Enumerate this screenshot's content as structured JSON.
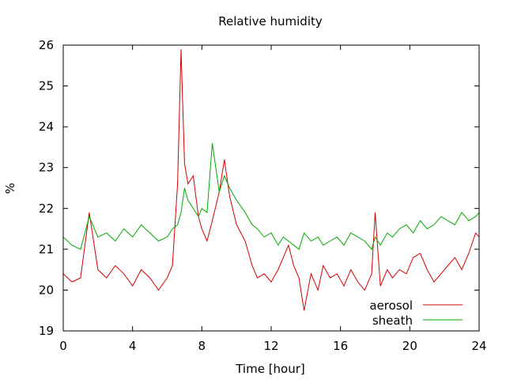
{
  "chart_data": {
    "type": "line",
    "title": "Relative humidity",
    "xlabel": "Time [hour]",
    "ylabel": "%",
    "xlim": [
      0,
      24
    ],
    "ylim": [
      19,
      26
    ],
    "xticks": [
      0,
      4,
      8,
      12,
      16,
      20,
      24
    ],
    "yticks": [
      19,
      20,
      21,
      22,
      23,
      24,
      25,
      26
    ],
    "grid": false,
    "legend_position": "bottom-right",
    "series": [
      {
        "name": "aerosol",
        "color": "#d40000",
        "x": [
          0.0,
          0.5,
          1.0,
          1.5,
          2.0,
          2.5,
          3.0,
          3.5,
          4.0,
          4.5,
          5.0,
          5.5,
          6.0,
          6.3,
          6.6,
          6.8,
          7.0,
          7.2,
          7.5,
          7.8,
          8.0,
          8.3,
          8.6,
          9.0,
          9.3,
          9.6,
          10.0,
          10.5,
          10.9,
          11.2,
          11.6,
          12.0,
          12.4,
          12.7,
          13.0,
          13.3,
          13.6,
          13.9,
          14.3,
          14.7,
          15.0,
          15.4,
          15.8,
          16.2,
          16.6,
          17.0,
          17.4,
          17.8,
          18.0,
          18.3,
          18.7,
          19.0,
          19.4,
          19.8,
          20.2,
          20.6,
          21.0,
          21.4,
          21.8,
          22.2,
          22.6,
          23.0,
          23.4,
          23.8,
          24.0
        ],
        "y": [
          20.4,
          20.2,
          20.3,
          21.9,
          20.5,
          20.3,
          20.6,
          20.4,
          20.1,
          20.5,
          20.3,
          20.0,
          20.3,
          20.6,
          22.6,
          25.9,
          23.1,
          22.6,
          22.8,
          21.8,
          21.5,
          21.2,
          21.7,
          22.4,
          23.2,
          22.3,
          21.6,
          21.2,
          20.6,
          20.3,
          20.4,
          20.2,
          20.5,
          20.8,
          21.1,
          20.6,
          20.3,
          19.5,
          20.4,
          20.0,
          20.6,
          20.3,
          20.4,
          20.1,
          20.5,
          20.2,
          20.0,
          20.4,
          21.9,
          20.1,
          20.5,
          20.3,
          20.5,
          20.4,
          20.8,
          20.9,
          20.5,
          20.2,
          20.4,
          20.6,
          20.8,
          20.5,
          20.9,
          21.4,
          21.3
        ]
      },
      {
        "name": "sheath",
        "color": "#00aa00",
        "x": [
          0.0,
          0.5,
          1.0,
          1.5,
          2.0,
          2.5,
          3.0,
          3.5,
          4.0,
          4.5,
          5.0,
          5.5,
          6.0,
          6.3,
          6.6,
          6.8,
          7.0,
          7.2,
          7.5,
          7.8,
          8.0,
          8.3,
          8.6,
          9.0,
          9.3,
          9.6,
          10.0,
          10.5,
          10.9,
          11.2,
          11.6,
          12.0,
          12.4,
          12.7,
          13.0,
          13.3,
          13.6,
          13.9,
          14.3,
          14.7,
          15.0,
          15.4,
          15.8,
          16.2,
          16.6,
          17.0,
          17.4,
          17.8,
          18.0,
          18.3,
          18.7,
          19.0,
          19.4,
          19.8,
          20.2,
          20.6,
          21.0,
          21.4,
          21.8,
          22.2,
          22.6,
          23.0,
          23.4,
          23.8,
          24.0
        ],
        "y": [
          21.3,
          21.1,
          21.0,
          21.8,
          21.3,
          21.4,
          21.2,
          21.5,
          21.3,
          21.6,
          21.4,
          21.2,
          21.3,
          21.5,
          21.6,
          21.9,
          22.5,
          22.2,
          22.0,
          21.8,
          22.0,
          21.9,
          23.6,
          22.4,
          22.8,
          22.5,
          22.2,
          21.9,
          21.6,
          21.5,
          21.3,
          21.4,
          21.1,
          21.3,
          21.2,
          21.1,
          21.0,
          21.4,
          21.2,
          21.3,
          21.1,
          21.2,
          21.3,
          21.1,
          21.4,
          21.3,
          21.2,
          21.0,
          21.3,
          21.1,
          21.4,
          21.3,
          21.5,
          21.6,
          21.4,
          21.7,
          21.5,
          21.6,
          21.8,
          21.7,
          21.6,
          21.9,
          21.7,
          21.8,
          21.9
        ]
      }
    ]
  }
}
